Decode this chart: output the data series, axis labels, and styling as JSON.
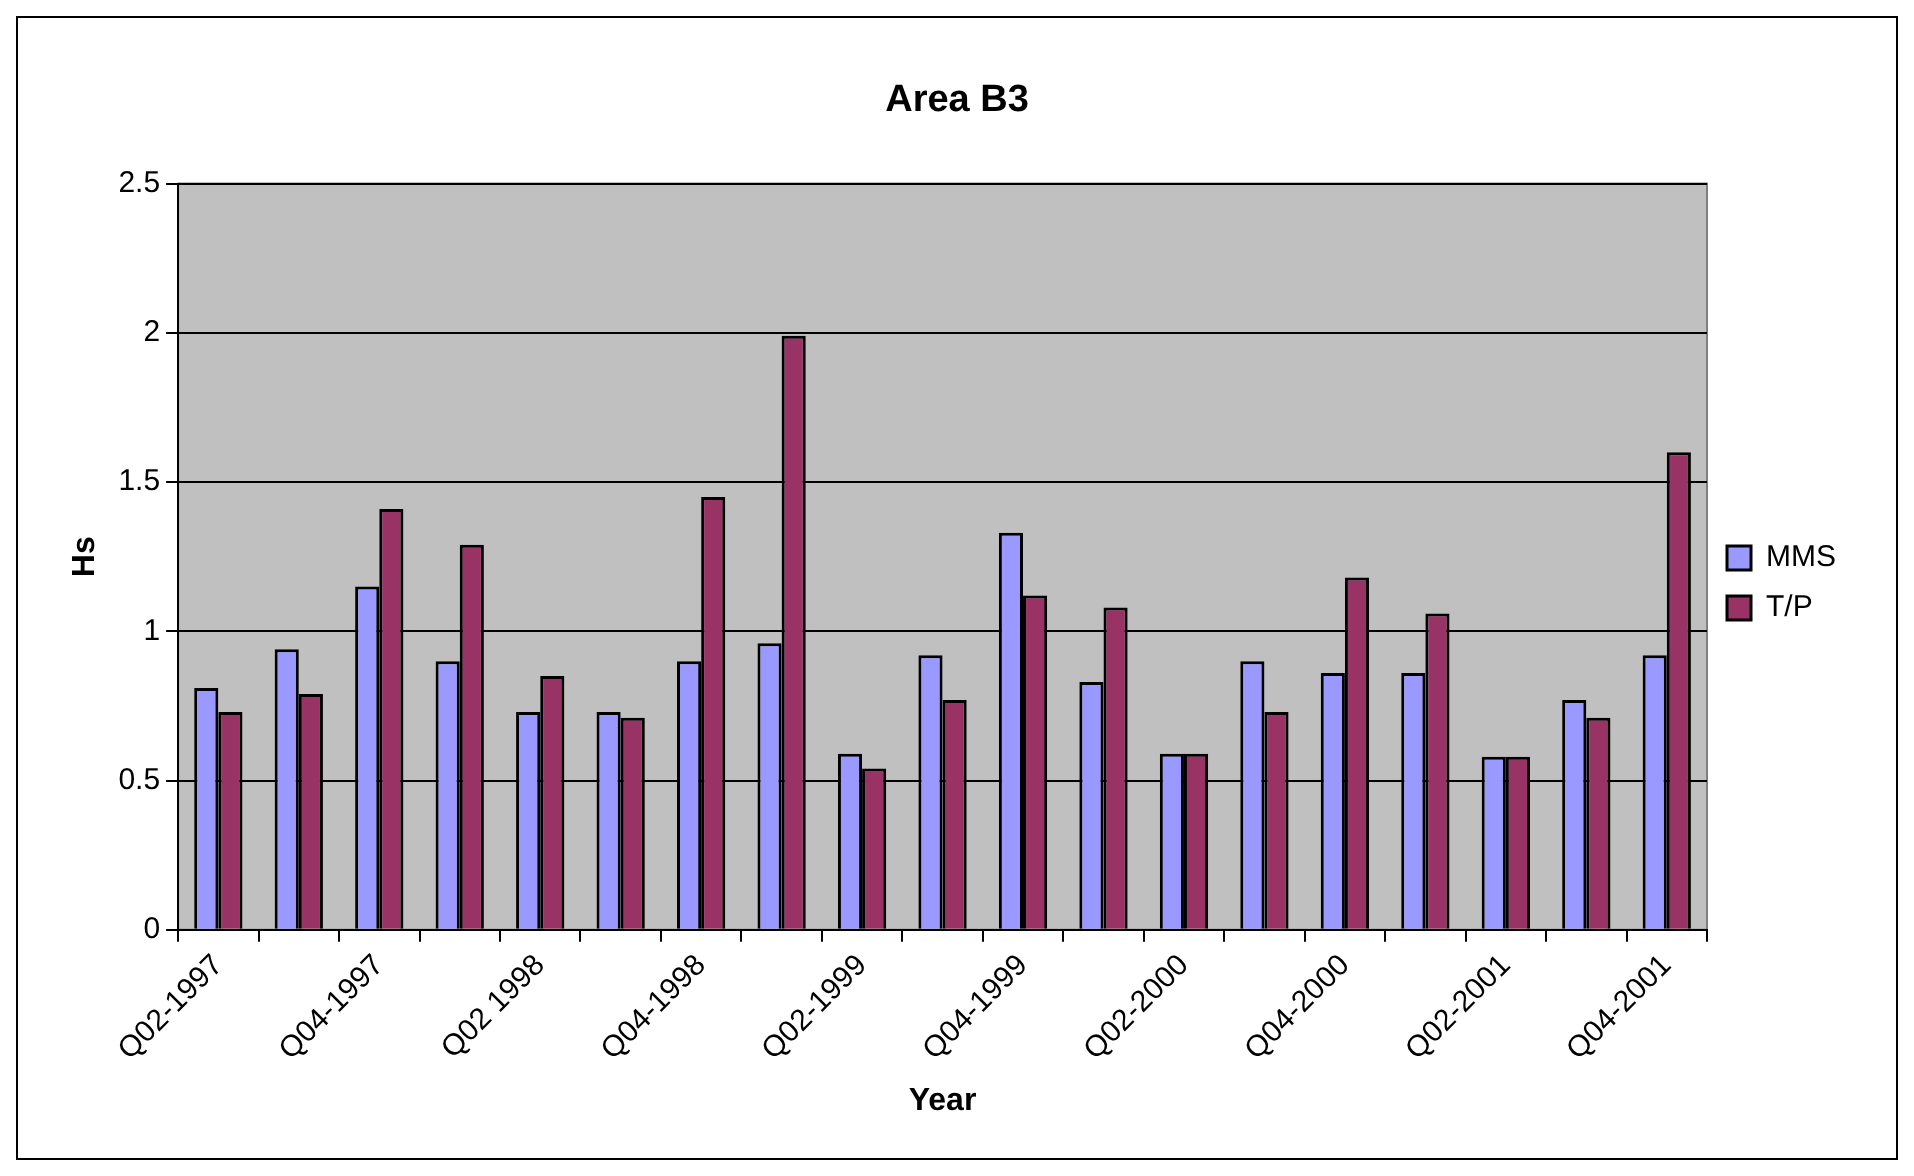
{
  "chart_data": {
    "type": "bar",
    "title": "Area B3",
    "xlabel": "Year",
    "ylabel": "Hs",
    "categories": [
      "Q02-1997",
      null,
      "Q04-1997",
      null,
      "Q02 1998",
      null,
      "Q04-1998",
      null,
      "Q02-1999",
      null,
      "Q04-1999",
      null,
      "Q02-2000",
      null,
      "Q04-2000",
      null,
      "Q02-2001",
      null,
      "Q04-2001"
    ],
    "series": [
      {
        "name": "MMS",
        "color": "#9999ff",
        "values": [
          0.81,
          0.94,
          1.15,
          0.9,
          0.73,
          0.73,
          0.9,
          0.96,
          0.59,
          0.92,
          1.33,
          0.83,
          0.59,
          0.9,
          0.86,
          0.86,
          0.58,
          0.77,
          0.92
        ]
      },
      {
        "name": "T/P",
        "color": "#993366",
        "values": [
          0.73,
          0.79,
          1.41,
          1.29,
          0.85,
          0.71,
          1.45,
          1.99,
          0.54,
          0.77,
          1.12,
          1.08,
          0.59,
          0.73,
          1.18,
          1.06,
          0.58,
          0.71,
          1.6
        ]
      }
    ],
    "ylim": [
      0,
      2.5
    ],
    "yticks": [
      0,
      0.5,
      1,
      1.5,
      2,
      2.5
    ],
    "grid": "y",
    "legend": "right"
  }
}
